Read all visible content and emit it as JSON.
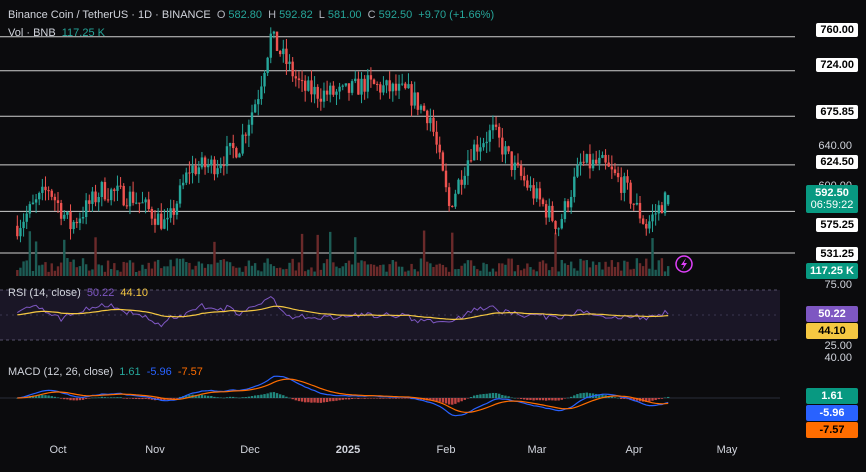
{
  "header": {
    "symbol": "Binance Coin / TetherUS · 1D · BINANCE",
    "o_label": "O",
    "o_value": "582.80",
    "h_label": "H",
    "h_value": "592.82",
    "l_label": "L",
    "l_value": "581.00",
    "c_label": "C",
    "c_value": "592.50",
    "change": "+9.70 (+1.66%)",
    "vol_label": "Vol · BNB",
    "vol_value": "117.25 K"
  },
  "levels": [
    "760.00",
    "724.00",
    "675.85",
    "624.50",
    "575.25",
    "531.25"
  ],
  "axis_ticks": [
    "640.00",
    "600.00"
  ],
  "price_tag": {
    "price": "592.50",
    "countdown": "06:59:22"
  },
  "volume_tag": "117.25 K",
  "rsi": {
    "label": "RSI (14, close)",
    "rsi_value": "50.22",
    "ma_value": "44.10",
    "upper": "75.00",
    "lower": "25.00",
    "top_tick": "40.00"
  },
  "macd": {
    "label": "MACD (12, 26, close)",
    "hist": "1.61",
    "macd": "-5.96",
    "signal": "-7.57"
  },
  "months": [
    "Oct",
    "Nov",
    "Dec",
    "2025",
    "Feb",
    "Mar",
    "Apr",
    "May"
  ],
  "colors": {
    "up": "#26a69a",
    "down": "#ef5350",
    "rsi": "#7e57c2",
    "rsi_ma": "#f5c842",
    "macd": "#2962ff",
    "signal": "#ff6d00",
    "bg": "#0b0b0d"
  },
  "chart_data": {
    "type": "candlestick",
    "title": "Binance Coin / TetherUS · 1D · BINANCE",
    "price_scale_levels": [
      760,
      724,
      675.85,
      640,
      624.5,
      600,
      575.25,
      531.25
    ],
    "ylim": [
      520,
      790
    ],
    "close_path": [
      [
        "2024-09-18",
        560
      ],
      [
        "2024-09-28",
        600
      ],
      [
        "2024-10-05",
        560
      ],
      [
        "2024-10-15",
        598
      ],
      [
        "2024-10-25",
        590
      ],
      [
        "2024-11-05",
        560
      ],
      [
        "2024-11-12",
        620
      ],
      [
        "2024-11-20",
        625
      ],
      [
        "2024-11-28",
        645
      ],
      [
        "2024-12-04",
        700
      ],
      [
        "2024-12-08",
        760
      ],
      [
        "2024-12-18",
        705
      ],
      [
        "2024-12-24",
        700
      ],
      [
        "2024-12-31",
        700
      ],
      [
        "2025-01-07",
        710
      ],
      [
        "2025-01-14",
        705
      ],
      [
        "2025-01-21",
        700
      ],
      [
        "2025-01-28",
        675
      ],
      [
        "2025-02-03",
        580
      ],
      [
        "2025-02-10",
        640
      ],
      [
        "2025-02-17",
        660
      ],
      [
        "2025-02-24",
        620
      ],
      [
        "2025-03-03",
        590
      ],
      [
        "2025-03-10",
        560
      ],
      [
        "2025-03-17",
        625
      ],
      [
        "2025-03-24",
        625
      ],
      [
        "2025-03-31",
        602
      ],
      [
        "2025-04-07",
        560
      ],
      [
        "2025-04-14",
        592.5
      ]
    ]
  }
}
